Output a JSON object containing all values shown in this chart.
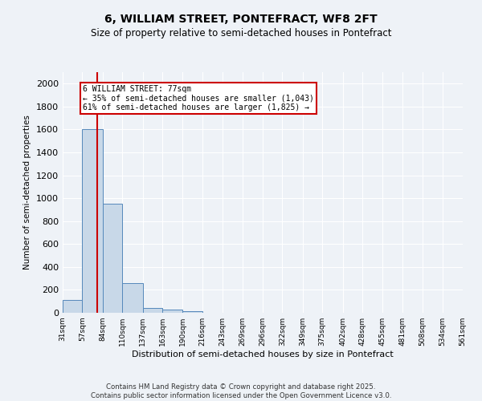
{
  "title": "6, WILLIAM STREET, PONTEFRACT, WF8 2FT",
  "subtitle": "Size of property relative to semi-detached houses in Pontefract",
  "xlabel": "Distribution of semi-detached houses by size in Pontefract",
  "ylabel": "Number of semi-detached properties",
  "bin_edges": [
    31,
    57,
    84,
    110,
    137,
    163,
    190,
    216,
    243,
    269,
    296,
    322,
    349,
    375,
    402,
    428,
    455,
    481,
    508,
    534,
    561
  ],
  "bar_heights": [
    110,
    1600,
    950,
    260,
    40,
    25,
    15,
    0,
    0,
    0,
    0,
    0,
    0,
    0,
    0,
    0,
    0,
    0,
    0,
    0
  ],
  "bar_color": "#c8d8e8",
  "bar_edge_color": "#5588bb",
  "red_line_x": 77,
  "annotation_title": "6 WILLIAM STREET: 77sqm",
  "annotation_line1": "← 35% of semi-detached houses are smaller (1,043)",
  "annotation_line2": "61% of semi-detached houses are larger (1,825) →",
  "annotation_box_color": "#ffffff",
  "annotation_border_color": "#cc0000",
  "red_line_color": "#cc0000",
  "ylim": [
    0,
    2100
  ],
  "yticks": [
    0,
    200,
    400,
    600,
    800,
    1000,
    1200,
    1400,
    1600,
    1800,
    2000
  ],
  "bg_color": "#eef2f7",
  "grid_color": "#ffffff",
  "footer_line1": "Contains HM Land Registry data © Crown copyright and database right 2025.",
  "footer_line2": "Contains public sector information licensed under the Open Government Licence v3.0."
}
